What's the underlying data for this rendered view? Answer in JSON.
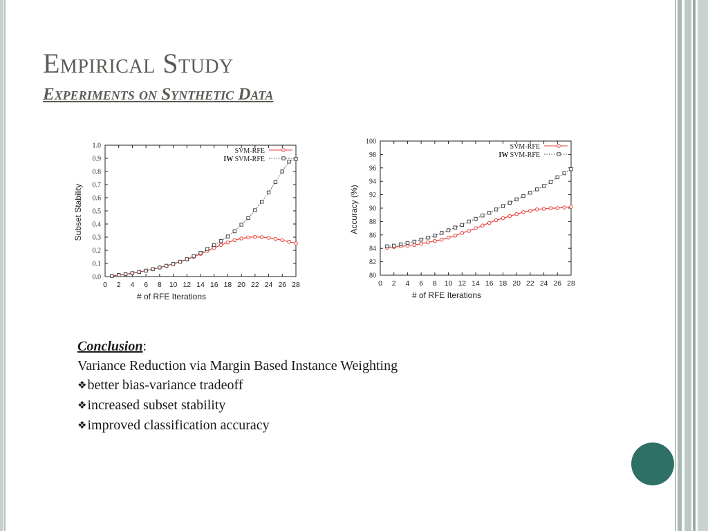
{
  "slide": {
    "title": "Empirical Study",
    "subtitle": "Experiments on Synthetic Data",
    "accent_color": "#2e6f66",
    "text_color": "#5a5a55"
  },
  "conclusion": {
    "heading": "Conclusion",
    "heading_suffix": ":",
    "summary": "Variance Reduction via Margin Based Instance Weighting",
    "bullets": [
      "better bias-variance tradeoff",
      "increased subset stability",
      "improved classification accuracy"
    ]
  },
  "chart_data": [
    {
      "type": "line",
      "xlabel": "# of RFE Iterations",
      "ylabel": "Subset Stability",
      "xlim": [
        0,
        28
      ],
      "ylim": [
        0,
        1.0
      ],
      "x_ticks": [
        "0",
        "2",
        "4",
        "6",
        "8",
        "10",
        "12",
        "14",
        "16",
        "18",
        "20",
        "22",
        "24",
        "26",
        "28"
      ],
      "y_ticks": [
        "0.0",
        "0.1",
        "0.2",
        "0.3",
        "0.4",
        "0.5",
        "0.6",
        "0.7",
        "0.8",
        "0.9",
        "1.0"
      ],
      "legend_position": "top-right",
      "grid": false,
      "x": [
        1,
        2,
        3,
        4,
        5,
        6,
        7,
        8,
        9,
        10,
        11,
        12,
        13,
        14,
        15,
        16,
        17,
        18,
        19,
        20,
        21,
        22,
        23,
        24,
        25,
        26,
        27,
        28
      ],
      "series": [
        {
          "name": "SVM-RFE",
          "color": "#e8413c",
          "marker": "circle",
          "line": "solid",
          "values": [
            0.005,
            0.012,
            0.018,
            0.026,
            0.035,
            0.045,
            0.057,
            0.069,
            0.082,
            0.097,
            0.113,
            0.13,
            0.15,
            0.172,
            0.195,
            0.218,
            0.24,
            0.26,
            0.277,
            0.29,
            0.298,
            0.302,
            0.3,
            0.295,
            0.287,
            0.277,
            0.265,
            0.252
          ]
        },
        {
          "name": "SVM-RFE",
          "name_prefix": "IW",
          "color": "#444444",
          "marker": "square",
          "line": "dotted",
          "values": [
            0.005,
            0.012,
            0.018,
            0.026,
            0.035,
            0.045,
            0.057,
            0.069,
            0.082,
            0.097,
            0.113,
            0.132,
            0.155,
            0.18,
            0.21,
            0.24,
            0.27,
            0.305,
            0.345,
            0.395,
            0.445,
            0.505,
            0.57,
            0.64,
            0.72,
            0.8,
            0.875,
            0.895
          ]
        }
      ]
    },
    {
      "type": "line",
      "xlabel": "# of RFE Iterations",
      "ylabel": "Accuracy (%)",
      "xlim": [
        0,
        28
      ],
      "ylim": [
        80,
        100
      ],
      "x_ticks": [
        "0",
        "2",
        "4",
        "6",
        "8",
        "10",
        "12",
        "14",
        "16",
        "18",
        "20",
        "22",
        "24",
        "26",
        "28"
      ],
      "y_ticks": [
        "80",
        "82",
        "84",
        "86",
        "88",
        "90",
        "92",
        "94",
        "96",
        "98",
        "100"
      ],
      "legend_position": "top-right",
      "grid": false,
      "x": [
        1,
        2,
        3,
        4,
        5,
        6,
        7,
        8,
        9,
        10,
        11,
        12,
        13,
        14,
        15,
        16,
        17,
        18,
        19,
        20,
        21,
        22,
        23,
        24,
        25,
        26,
        27,
        28
      ],
      "series": [
        {
          "name": "SVM-RFE",
          "color": "#e8413c",
          "marker": "circle",
          "line": "solid",
          "values": [
            84.1,
            84.2,
            84.3,
            84.4,
            84.5,
            84.7,
            84.9,
            85.1,
            85.3,
            85.6,
            85.9,
            86.3,
            86.6,
            87.0,
            87.4,
            87.8,
            88.2,
            88.5,
            88.8,
            89.1,
            89.4,
            89.6,
            89.8,
            89.9,
            90.0,
            90.0,
            90.1,
            90.2
          ]
        },
        {
          "name": "SVM-RFE",
          "name_prefix": "IW",
          "color": "#444444",
          "marker": "square",
          "line": "dotted",
          "values": [
            84.3,
            84.4,
            84.6,
            84.8,
            85.0,
            85.3,
            85.6,
            85.9,
            86.3,
            86.7,
            87.1,
            87.5,
            88.0,
            88.4,
            88.9,
            89.3,
            89.8,
            90.3,
            90.8,
            91.3,
            91.8,
            92.3,
            92.8,
            93.3,
            93.9,
            94.6,
            95.2,
            95.8
          ]
        }
      ]
    }
  ]
}
